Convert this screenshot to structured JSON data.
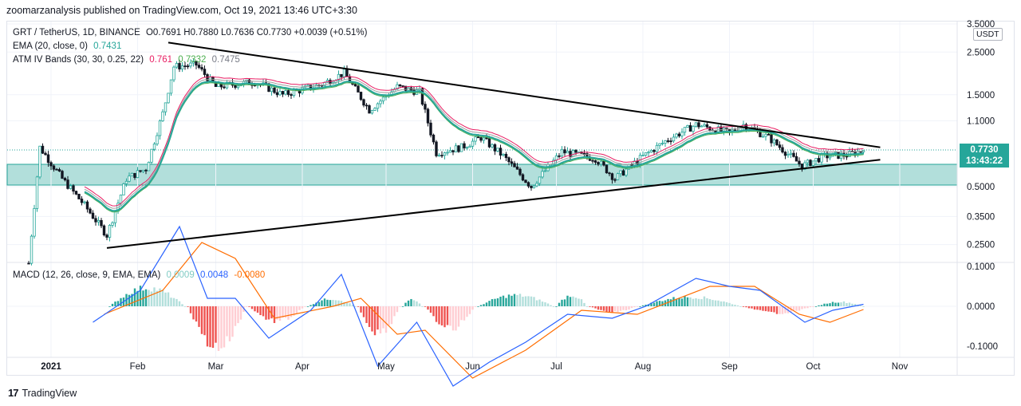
{
  "header": {
    "published": "zoomarzanalysis published on TradingView.com, Oct 19, 2021 13:46 UTC+3:30"
  },
  "legend": {
    "symbol": "GRT / TetherUS, 1D, BINANCE",
    "ohlc": "O0.7691  H0.7880  L0.7636  C0.7730  +0.0039 (+0.51%)",
    "ema_label": "EMA (20, close, 0)",
    "ema_value": "0.7431",
    "bands_label": "ATM IV Bands (30, 30, 0.25, 22)",
    "bands_v1": "0.761",
    "bands_v2": "0.7332",
    "bands_v3": "0.7475",
    "macd_label": "MACD (12, 26, close, 9, EMA, EMA)",
    "macd_v1": "0.0009",
    "macd_v2": "0.0048",
    "macd_v3": "-0.0080"
  },
  "price_badge": {
    "price": "0.7730",
    "countdown": "13:43:22"
  },
  "unit_badge": "USDT",
  "footer": {
    "brand": "TradingView"
  },
  "colors": {
    "up": "#26a69a",
    "down": "#131722",
    "ema": "#26a69a",
    "band_upper": "#e91e63",
    "band_mid": "#9e9e9e",
    "band_lower": "#4caf50",
    "macd": "#2962ff",
    "signal": "#ff6d00",
    "zone": "#b2dfdb"
  },
  "chart_data": [
    {
      "type": "candlestick",
      "title": "GRT / TetherUS, 1D, BINANCE",
      "scale": "log",
      "y_ticks": [
        "3.5000",
        "2.5000",
        "1.5000",
        "1.1000",
        "0.7730",
        "0.5000",
        "0.3500",
        "0.2500"
      ],
      "x_ticks": [
        "2021",
        "Feb",
        "Mar",
        "Apr",
        "May",
        "Jun",
        "Jul",
        "Aug",
        "Sep",
        "Oct",
        "Nov"
      ],
      "last_close": 0.773,
      "support_zone": [
        0.5,
        0.68
      ],
      "triangle": {
        "upper_line": [
          {
            "date": "2021-02-12",
            "price": 2.8
          },
          {
            "date": "2021-10-25",
            "price": 0.8
          }
        ],
        "lower_line": [
          {
            "date": "2021-01-21",
            "price": 0.24
          },
          {
            "date": "2021-10-25",
            "price": 0.69
          }
        ]
      },
      "price_path": [
        {
          "date": "2020-12-24",
          "price": 0.2
        },
        {
          "date": "2020-12-28",
          "price": 0.8
        },
        {
          "date": "2021-01-05",
          "price": 0.55
        },
        {
          "date": "2021-01-13",
          "price": 0.4
        },
        {
          "date": "2021-01-21",
          "price": 0.28
        },
        {
          "date": "2021-01-28",
          "price": 0.55
        },
        {
          "date": "2021-02-04",
          "price": 0.62
        },
        {
          "date": "2021-02-10",
          "price": 1.2
        },
        {
          "date": "2021-02-14",
          "price": 2.1
        },
        {
          "date": "2021-02-22",
          "price": 2.15
        },
        {
          "date": "2021-03-01",
          "price": 1.65
        },
        {
          "date": "2021-03-15",
          "price": 1.75
        },
        {
          "date": "2021-03-25",
          "price": 1.5
        },
        {
          "date": "2021-04-08",
          "price": 1.7
        },
        {
          "date": "2021-04-16",
          "price": 1.95
        },
        {
          "date": "2021-04-25",
          "price": 1.25
        },
        {
          "date": "2021-05-05",
          "price": 1.65
        },
        {
          "date": "2021-05-13",
          "price": 1.55
        },
        {
          "date": "2021-05-19",
          "price": 0.75
        },
        {
          "date": "2021-05-28",
          "price": 0.8
        },
        {
          "date": "2021-06-04",
          "price": 0.9
        },
        {
          "date": "2021-06-12",
          "price": 0.72
        },
        {
          "date": "2021-06-22",
          "price": 0.5
        },
        {
          "date": "2021-07-03",
          "price": 0.76
        },
        {
          "date": "2021-07-15",
          "price": 0.7
        },
        {
          "date": "2021-07-22",
          "price": 0.55
        },
        {
          "date": "2021-07-31",
          "price": 0.7
        },
        {
          "date": "2021-08-10",
          "price": 0.88
        },
        {
          "date": "2021-08-20",
          "price": 1.05
        },
        {
          "date": "2021-09-01",
          "price": 0.95
        },
        {
          "date": "2021-09-06",
          "price": 1.05
        },
        {
          "date": "2021-09-15",
          "price": 0.9
        },
        {
          "date": "2021-09-27",
          "price": 0.64
        },
        {
          "date": "2021-10-05",
          "price": 0.72
        },
        {
          "date": "2021-10-13",
          "price": 0.73
        },
        {
          "date": "2021-10-19",
          "price": 0.773
        }
      ]
    },
    {
      "type": "macd",
      "title": "MACD (12, 26, close, 9, EMA, EMA)",
      "y_ticks": [
        "0.1000",
        "0.0000",
        "-0.1000"
      ],
      "macd_path": [
        {
          "date": "2021-01-16",
          "value": -0.04
        },
        {
          "date": "2021-02-02",
          "value": 0.04
        },
        {
          "date": "2021-02-16",
          "value": 0.2
        },
        {
          "date": "2021-02-26",
          "value": 0.02
        },
        {
          "date": "2021-03-08",
          "value": 0.02
        },
        {
          "date": "2021-03-20",
          "value": -0.08
        },
        {
          "date": "2021-04-04",
          "value": -0.01
        },
        {
          "date": "2021-04-15",
          "value": 0.08
        },
        {
          "date": "2021-04-28",
          "value": -0.15
        },
        {
          "date": "2021-05-12",
          "value": -0.04
        },
        {
          "date": "2021-05-25",
          "value": -0.2
        },
        {
          "date": "2021-06-07",
          "value": -0.14
        },
        {
          "date": "2021-06-20",
          "value": -0.09
        },
        {
          "date": "2021-07-05",
          "value": -0.02
        },
        {
          "date": "2021-07-21",
          "value": -0.03
        },
        {
          "date": "2021-08-02",
          "value": 0.0
        },
        {
          "date": "2021-08-20",
          "value": 0.07
        },
        {
          "date": "2021-09-01",
          "value": 0.05
        },
        {
          "date": "2021-09-12",
          "value": 0.04
        },
        {
          "date": "2021-09-28",
          "value": -0.04
        },
        {
          "date": "2021-10-08",
          "value": -0.01
        },
        {
          "date": "2021-10-19",
          "value": 0.005
        }
      ],
      "signal_path": [
        {
          "date": "2021-01-20",
          "value": -0.02
        },
        {
          "date": "2021-02-10",
          "value": 0.04
        },
        {
          "date": "2021-02-24",
          "value": 0.16
        },
        {
          "date": "2021-03-08",
          "value": 0.12
        },
        {
          "date": "2021-03-22",
          "value": -0.03
        },
        {
          "date": "2021-04-12",
          "value": 0.0
        },
        {
          "date": "2021-04-22",
          "value": 0.02
        },
        {
          "date": "2021-05-05",
          "value": -0.07
        },
        {
          "date": "2021-05-15",
          "value": -0.06
        },
        {
          "date": "2021-06-01",
          "value": -0.18
        },
        {
          "date": "2021-06-20",
          "value": -0.11
        },
        {
          "date": "2021-07-10",
          "value": -0.01
        },
        {
          "date": "2021-07-30",
          "value": -0.02
        },
        {
          "date": "2021-08-25",
          "value": 0.05
        },
        {
          "date": "2021-09-10",
          "value": 0.05
        },
        {
          "date": "2021-09-26",
          "value": -0.02
        },
        {
          "date": "2021-10-07",
          "value": -0.04
        },
        {
          "date": "2021-10-19",
          "value": -0.008
        }
      ],
      "histogram_segments": [
        {
          "from": "2021-01-22",
          "to": "2021-02-18",
          "peak": 0.05,
          "sign": "up"
        },
        {
          "from": "2021-02-19",
          "to": "2021-03-12",
          "peak": -0.11,
          "sign": "down"
        },
        {
          "from": "2021-03-13",
          "to": "2021-04-02",
          "peak": -0.04,
          "sign": "down"
        },
        {
          "from": "2021-04-03",
          "to": "2021-04-20",
          "peak": 0.02,
          "sign": "up"
        },
        {
          "from": "2021-04-21",
          "to": "2021-05-06",
          "peak": -0.07,
          "sign": "down"
        },
        {
          "from": "2021-05-07",
          "to": "2021-05-14",
          "peak": 0.02,
          "sign": "up"
        },
        {
          "from": "2021-05-15",
          "to": "2021-06-02",
          "peak": -0.06,
          "sign": "down"
        },
        {
          "from": "2021-06-03",
          "to": "2021-06-30",
          "peak": 0.03,
          "sign": "up"
        },
        {
          "from": "2021-07-01",
          "to": "2021-07-12",
          "peak": 0.03,
          "sign": "up"
        },
        {
          "from": "2021-07-13",
          "to": "2021-07-30",
          "peak": -0.015,
          "sign": "down"
        },
        {
          "from": "2021-07-31",
          "to": "2021-09-05",
          "peak": 0.025,
          "sign": "up"
        },
        {
          "from": "2021-09-06",
          "to": "2021-10-01",
          "peak": -0.018,
          "sign": "down"
        },
        {
          "from": "2021-10-02",
          "to": "2021-10-19",
          "peak": 0.012,
          "sign": "up"
        }
      ]
    }
  ]
}
